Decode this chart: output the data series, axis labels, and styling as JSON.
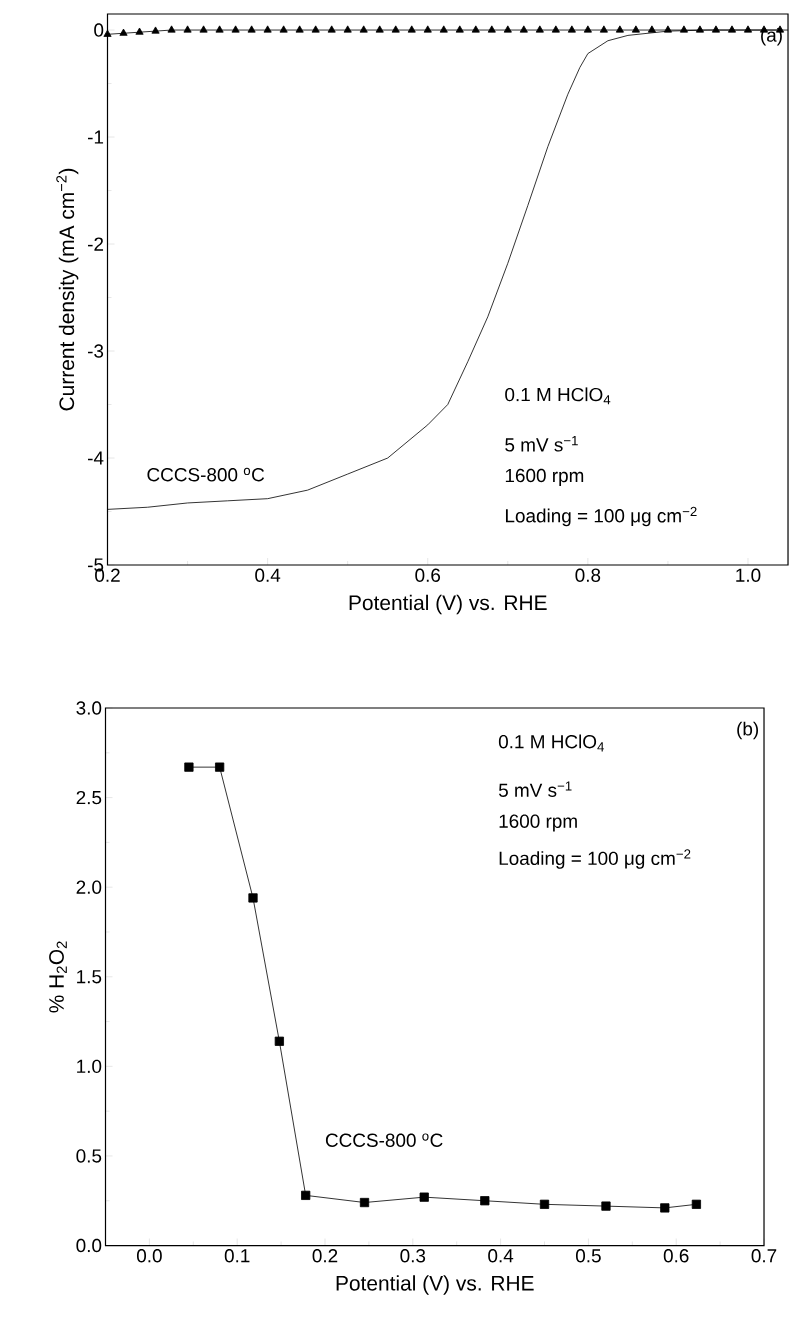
{
  "chart_data": [
    {
      "type": "line",
      "xlabel": "Potential (V) vs. RHE",
      "ylabel": "Current density (mA cm$^{−2}$)",
      "xlim": [
        0.2,
        1.05
      ],
      "ylim": [
        -5,
        0.15
      ],
      "xticks": [
        {
          "value": 0.2,
          "label": "0.2"
        },
        {
          "value": 0.4,
          "label": "0.4"
        },
        {
          "value": 0.6,
          "label": "0.6"
        },
        {
          "value": 0.8,
          "label": "0.8"
        },
        {
          "value": 1.0,
          "label": "1.0"
        }
      ],
      "yticks": [
        -5,
        -4,
        -3,
        -2,
        -1,
        0
      ],
      "grid": false,
      "line_style": "solid",
      "annotations": [
        "(a)",
        "0.1 M HClO$_{4}$",
        "5 mV s$^{−1}$",
        "1600 rpm",
        "Loading = 100 μg cm$^{−2}$"
      ],
      "series": [
        {
          "color": "#000000",
          "marker": "triangle",
          "x": [
            0.2,
            0.22,
            0.24,
            0.26,
            0.28,
            0.3,
            0.32,
            0.34,
            0.36,
            0.38,
            0.4,
            0.42,
            0.44,
            0.46,
            0.48,
            0.5,
            0.52,
            0.54,
            0.56,
            0.58,
            0.6,
            0.62,
            0.64,
            0.66,
            0.68,
            0.7,
            0.72,
            0.74,
            0.76,
            0.78,
            0.8,
            0.82,
            0.84,
            0.86,
            0.88,
            0.9,
            0.92,
            0.94,
            0.96,
            0.98,
            1.0,
            1.02,
            1.04
          ],
          "values": [
            -0.04,
            -0.03,
            -0.02,
            -0.01,
            0,
            0,
            0,
            0,
            0,
            0,
            0,
            0,
            0,
            0,
            0,
            0,
            0,
            0,
            0,
            0,
            0,
            0,
            0,
            0,
            0,
            0,
            0,
            0,
            0,
            0,
            0,
            0,
            0,
            0,
            0,
            0,
            0,
            0,
            0,
            0,
            0,
            0,
            0
          ]
        },
        {
          "name": "CCCS-800 $^{o}$C",
          "color": "#000000",
          "marker": "none",
          "x": [
            0.2,
            0.25,
            0.3,
            0.35,
            0.4,
            0.45,
            0.5,
            0.55,
            0.6,
            0.625,
            0.65,
            0.675,
            0.7,
            0.725,
            0.75,
            0.775,
            0.79,
            0.8,
            0.825,
            0.85,
            0.9,
            0.95,
            1.0,
            1.05
          ],
          "values": [
            -4.48,
            -4.46,
            -4.42,
            -4.4,
            -4.38,
            -4.3,
            -4.15,
            -4.0,
            -3.69,
            -3.5,
            -3.1,
            -2.68,
            -2.18,
            -1.64,
            -1.09,
            -0.6,
            -0.35,
            -0.22,
            -0.1,
            -0.05,
            -0.01,
            0,
            0,
            0
          ]
        }
      ]
    },
    {
      "type": "line",
      "xlabel": "Potential (V) vs. RHE",
      "ylabel": "% H$_{2}$O$_{2}$",
      "xlim": [
        -0.05,
        0.7
      ],
      "ylim": [
        0,
        3
      ],
      "xticks": [
        {
          "value": 0,
          "label": "0.0"
        },
        {
          "value": 0.1,
          "label": "0.1"
        },
        {
          "value": 0.2,
          "label": "0.2"
        },
        {
          "value": 0.3,
          "label": "0.3"
        },
        {
          "value": 0.4,
          "label": "0.4"
        },
        {
          "value": 0.5,
          "label": "0.5"
        },
        {
          "value": 0.6,
          "label": "0.6"
        },
        {
          "value": 0.7,
          "label": "0.7"
        }
      ],
      "yticks": [
        {
          "value": 0,
          "label": "0.0"
        },
        {
          "value": 0.5,
          "label": "0.5"
        },
        {
          "value": 1,
          "label": "1.0"
        },
        {
          "value": 1.5,
          "label": "1.5"
        },
        {
          "value": 2,
          "label": "2.0"
        },
        {
          "value": 2.5,
          "label": "2.5"
        },
        {
          "value": 3,
          "label": "3.0"
        }
      ],
      "grid": false,
      "line_style": "solid",
      "marker": "square",
      "annotations": [
        "(b)",
        "0.1 M HClO$_{4}$",
        "5 mV s$^{−1}$",
        "1600 rpm",
        "Loading = 100 μg cm$^{−2}$"
      ],
      "series": [
        {
          "name": "CCCS-800 $^{o}$C",
          "color": "#000000",
          "x": [
            0.045,
            0.08,
            0.118,
            0.148,
            0.178,
            0.245,
            0.313,
            0.382,
            0.45,
            0.52,
            0.587,
            0.623
          ],
          "values": [
            2.67,
            2.67,
            1.94,
            1.14,
            0.28,
            0.24,
            0.27,
            0.25,
            0.23,
            0.22,
            0.21,
            0.23
          ]
        }
      ]
    }
  ]
}
